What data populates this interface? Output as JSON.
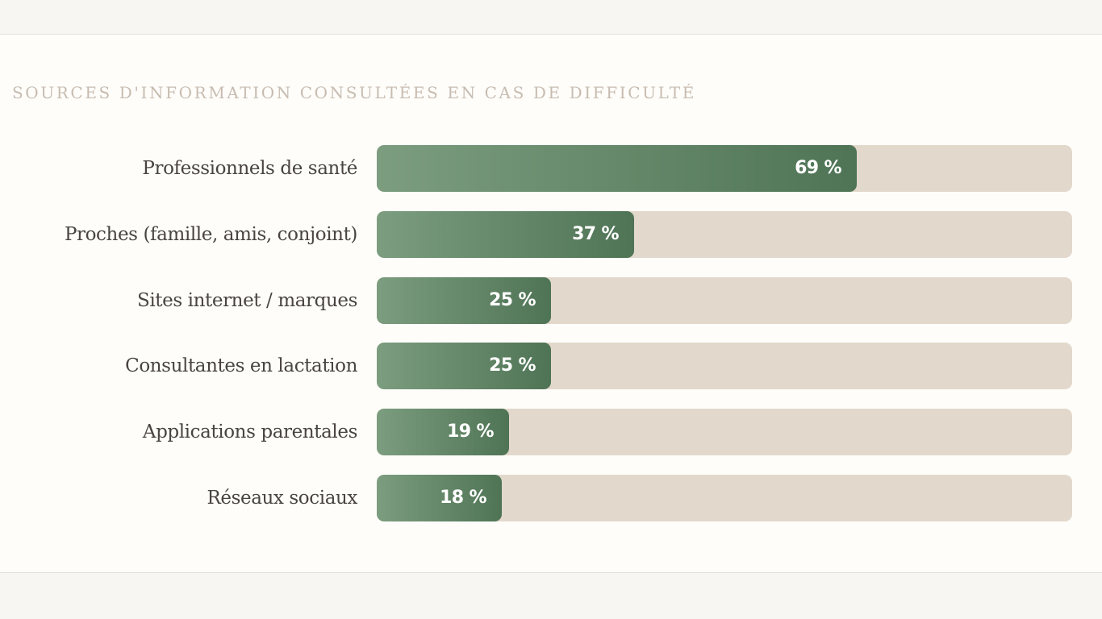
{
  "chart_data": {
    "type": "bar",
    "orientation": "horizontal",
    "title": "SOURCES D'INFORMATION CONSULTÉES EN CAS DE DIFFICULTÉ",
    "categories": [
      "Professionnels de santé",
      "Proches (famille, amis, conjoint)",
      "Sites internet / marques",
      "Consultantes en lactation",
      "Applications parentales",
      "Réseaux sociaux"
    ],
    "values": [
      69,
      37,
      25,
      25,
      19,
      18
    ],
    "value_labels": [
      "69 %",
      "37 %",
      "25 %",
      "25 %",
      "19 %",
      "18 %"
    ],
    "unit": "%",
    "xlim": [
      0,
      100
    ],
    "xlabel": "",
    "ylabel": ""
  },
  "colors": {
    "bar_start": "#7c9d7f",
    "bar_end": "#4f7455",
    "track": "#e2d8cb",
    "title": "#c8bcb0",
    "label": "#4a4440",
    "value_text": "#ffffff"
  }
}
